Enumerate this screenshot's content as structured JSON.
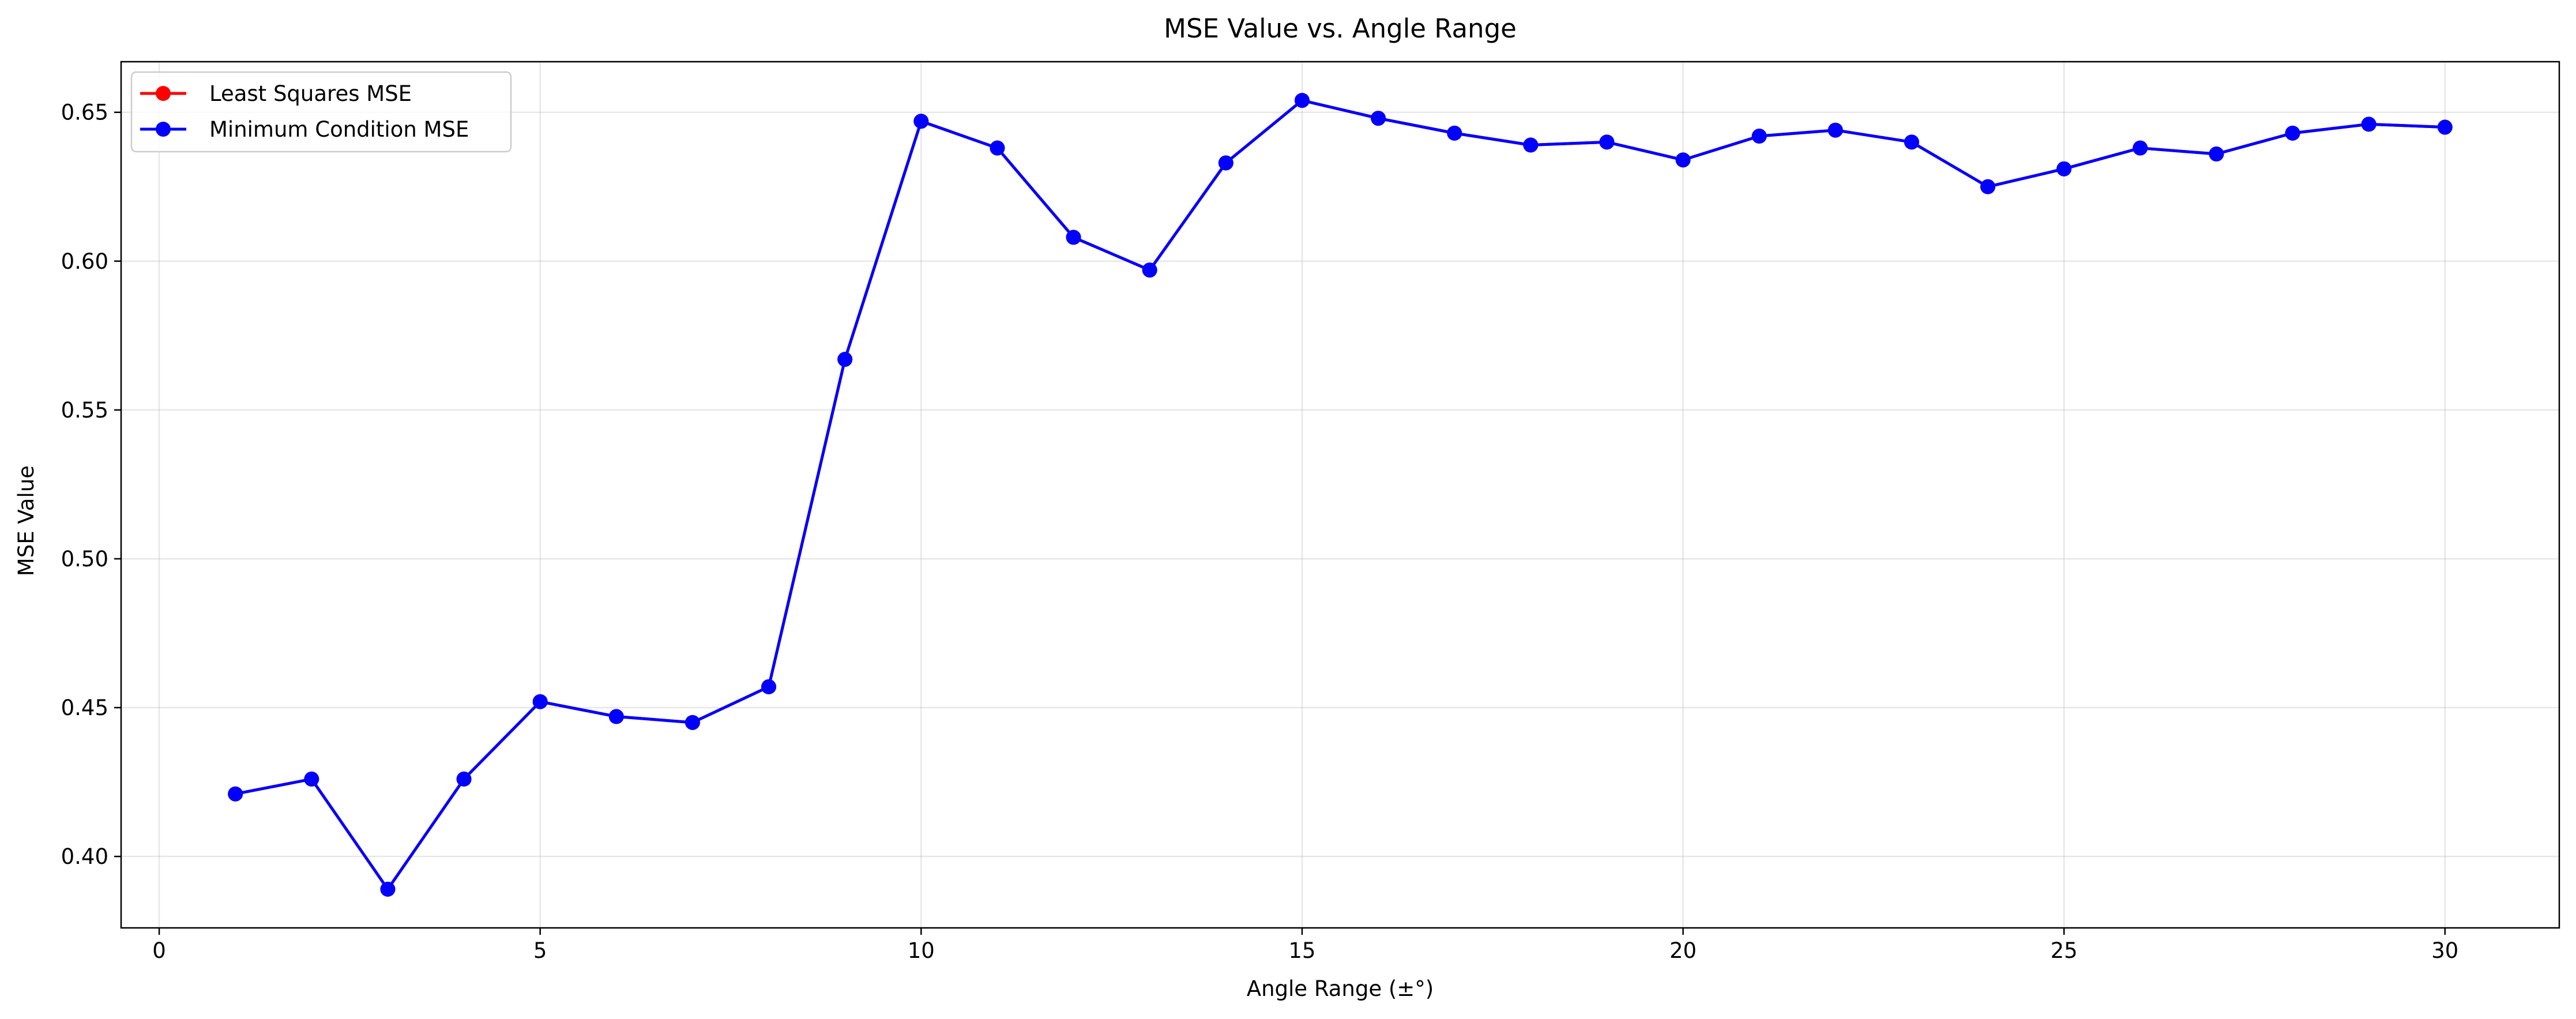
{
  "chart_data": {
    "type": "line",
    "title": "MSE Value vs. Angle Range",
    "xlabel": "Angle Range (±°)",
    "ylabel": "MSE Value",
    "xlim": [
      -0.5,
      31.5
    ],
    "ylim": [
      0.376,
      0.667
    ],
    "xticks": [
      0,
      5,
      10,
      15,
      20,
      25,
      30
    ],
    "yticks": [
      0.4,
      0.45,
      0.5,
      0.55,
      0.6,
      0.65
    ],
    "ytick_labels": [
      "0.40",
      "0.45",
      "0.50",
      "0.55",
      "0.60",
      "0.65"
    ],
    "grid": true,
    "legend_position": "upper-left",
    "x": [
      1,
      2,
      3,
      4,
      5,
      6,
      7,
      8,
      9,
      10,
      11,
      12,
      13,
      14,
      15,
      16,
      17,
      18,
      19,
      20,
      21,
      22,
      23,
      24,
      25,
      26,
      27,
      28,
      29,
      30
    ],
    "series": [
      {
        "name": "Least Squares MSE",
        "color": "#ff0000",
        "values": [
          0.421,
          0.426,
          0.389,
          0.426,
          0.452,
          0.447,
          0.445,
          0.457,
          0.567,
          0.647,
          0.638,
          0.608,
          0.597,
          0.633,
          0.654,
          0.648,
          0.643,
          0.639,
          0.64,
          0.634,
          0.642,
          0.644,
          0.64,
          0.625,
          0.631,
          0.638,
          0.636,
          0.643,
          0.646,
          0.645
        ]
      },
      {
        "name": "Minimum Condition MSE",
        "color": "#0000ff",
        "values": [
          0.421,
          0.426,
          0.389,
          0.426,
          0.452,
          0.447,
          0.445,
          0.457,
          0.567,
          0.647,
          0.638,
          0.608,
          0.597,
          0.633,
          0.654,
          0.648,
          0.643,
          0.639,
          0.64,
          0.634,
          0.642,
          0.644,
          0.64,
          0.625,
          0.631,
          0.638,
          0.636,
          0.643,
          0.646,
          0.645
        ]
      }
    ]
  }
}
